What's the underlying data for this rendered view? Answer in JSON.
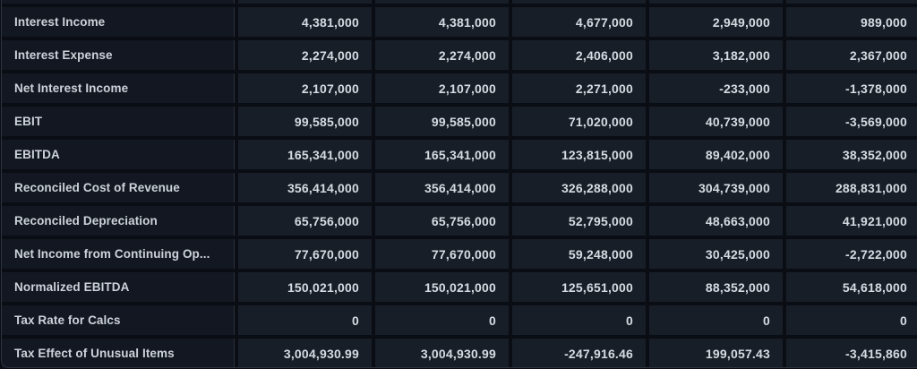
{
  "theme": {
    "page_background": "#0a0d13",
    "label_cell_background": "#121721",
    "value_cell_background": "#181e28",
    "card_border_color": "#2c3440",
    "label_text_color": "#cdd3da",
    "value_text_color": "#d6dbe2"
  },
  "table": {
    "rows": [
      {
        "label": "Interest Income",
        "values": [
          "4,381,000",
          "4,381,000",
          "4,677,000",
          "2,949,000",
          "989,000"
        ]
      },
      {
        "label": "Interest Expense",
        "values": [
          "2,274,000",
          "2,274,000",
          "2,406,000",
          "3,182,000",
          "2,367,000"
        ]
      },
      {
        "label": "Net Interest Income",
        "values": [
          "2,107,000",
          "2,107,000",
          "2,271,000",
          "-233,000",
          "-1,378,000"
        ]
      },
      {
        "label": "EBIT",
        "values": [
          "99,585,000",
          "99,585,000",
          "71,020,000",
          "40,739,000",
          "-3,569,000"
        ]
      },
      {
        "label": "EBITDA",
        "values": [
          "165,341,000",
          "165,341,000",
          "123,815,000",
          "89,402,000",
          "38,352,000"
        ]
      },
      {
        "label": "Reconciled Cost of Revenue",
        "values": [
          "356,414,000",
          "356,414,000",
          "326,288,000",
          "304,739,000",
          "288,831,000"
        ]
      },
      {
        "label": "Reconciled Depreciation",
        "values": [
          "65,756,000",
          "65,756,000",
          "52,795,000",
          "48,663,000",
          "41,921,000"
        ]
      },
      {
        "label": "Net Income from Continuing Op...",
        "values": [
          "77,670,000",
          "77,670,000",
          "59,248,000",
          "30,425,000",
          "-2,722,000"
        ]
      },
      {
        "label": "Normalized EBITDA",
        "values": [
          "150,021,000",
          "150,021,000",
          "125,651,000",
          "88,352,000",
          "54,618,000"
        ]
      },
      {
        "label": "Tax Rate for Calcs",
        "values": [
          "0",
          "0",
          "0",
          "0",
          "0"
        ]
      },
      {
        "label": "Tax Effect of Unusual Items",
        "values": [
          "3,004,930.99",
          "3,004,930.99",
          "-247,916.46",
          "199,057.43",
          "-3,415,860"
        ]
      }
    ]
  }
}
